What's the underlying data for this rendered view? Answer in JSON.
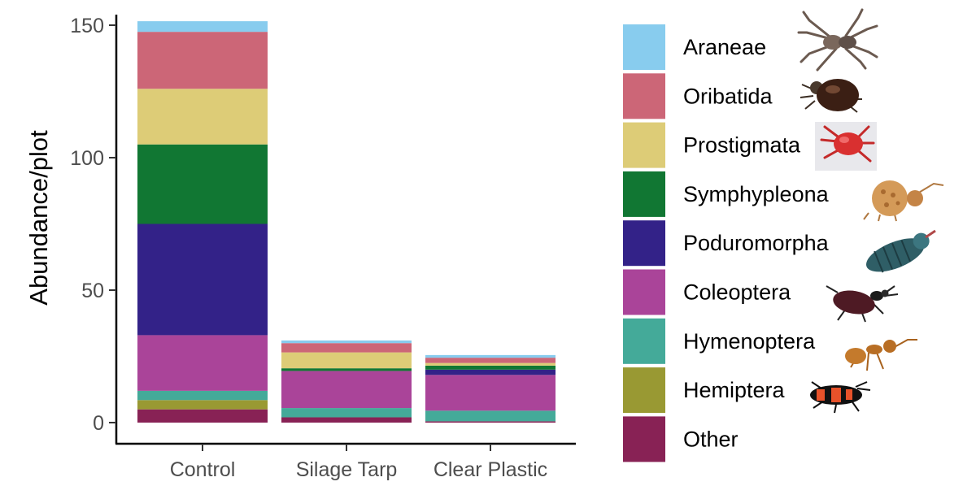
{
  "chart_data": {
    "type": "bar",
    "stacked": true,
    "ylabel": "Abundance/plot",
    "xlabel": "",
    "ylim": [
      0,
      150
    ],
    "yticks": [
      0,
      50,
      100,
      150
    ],
    "categories": [
      "Control",
      "Silage Tarp",
      "Clear Plastic"
    ],
    "series": [
      {
        "name": "Other",
        "color": "#882255",
        "values": [
          5,
          2,
          0.5
        ]
      },
      {
        "name": "Hemiptera",
        "color": "#999933",
        "values": [
          3.5,
          0,
          0
        ]
      },
      {
        "name": "Hymenoptera",
        "color": "#44AA99",
        "values": [
          3.5,
          3.5,
          4
        ]
      },
      {
        "name": "Coleoptera",
        "color": "#AA4499",
        "values": [
          21,
          14,
          13.5
        ]
      },
      {
        "name": "Poduromorpha",
        "color": "#332288",
        "values": [
          42,
          0,
          2
        ]
      },
      {
        "name": "Symphypleona",
        "color": "#117733",
        "values": [
          30,
          1,
          1.5
        ]
      },
      {
        "name": "Prostigmata",
        "color": "#DDCC77",
        "values": [
          21,
          6,
          1
        ]
      },
      {
        "name": "Oribatida",
        "color": "#CC6677",
        "values": [
          21.5,
          3.5,
          2
        ]
      },
      {
        "name": "Araneae",
        "color": "#88CCEE",
        "values": [
          4,
          1,
          1
        ]
      }
    ],
    "legend_position": "right",
    "legend_order": [
      "Araneae",
      "Oribatida",
      "Prostigmata",
      "Symphypleona",
      "Poduromorpha",
      "Coleoptera",
      "Hymenoptera",
      "Hemiptera",
      "Other"
    ],
    "legend_icons": {
      "Araneae": "spider-icon",
      "Oribatida": "mite-icon",
      "Prostigmata": "red-mite-icon",
      "Symphypleona": "springtail-icon",
      "Poduromorpha": "springtail-icon",
      "Coleoptera": "beetle-icon",
      "Hymenoptera": "ant-icon",
      "Hemiptera": "bug-icon"
    },
    "grid": false
  }
}
